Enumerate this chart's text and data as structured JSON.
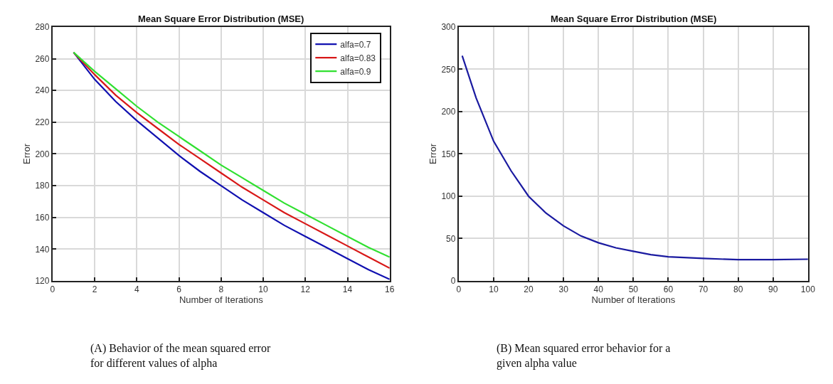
{
  "chart_data": [
    {
      "type": "line",
      "title": "Mean Square Error Distribution (MSE)",
      "xlabel": "Number of Iterations",
      "ylabel": "Error",
      "x": [
        1,
        2,
        3,
        4,
        5,
        6,
        7,
        8,
        9,
        10,
        11,
        12,
        13,
        14,
        15,
        16
      ],
      "series": [
        {
          "name": "alfa=0.7",
          "color": "#1010b0",
          "values": [
            264,
            247,
            233,
            221,
            210,
            199,
            189,
            180,
            171,
            163,
            155,
            148,
            141,
            134,
            127,
            121
          ]
        },
        {
          "name": "alfa=0.83",
          "color": "#d81818",
          "values": [
            264,
            250,
            237,
            226,
            216,
            206,
            197,
            188,
            179,
            171,
            163,
            156,
            149,
            142,
            135,
            128
          ]
        },
        {
          "name": "alfa=0.9",
          "color": "#30e030",
          "values": [
            264,
            252,
            241,
            230,
            220,
            211,
            202,
            193,
            185,
            177,
            169,
            162,
            155,
            148,
            141,
            135
          ]
        }
      ],
      "xlim": [
        0,
        16
      ],
      "xticks": [
        0,
        2,
        4,
        6,
        8,
        10,
        12,
        14,
        16
      ],
      "ylim": [
        120,
        280
      ],
      "yticks": [
        120,
        140,
        160,
        180,
        200,
        220,
        240,
        260,
        280
      ],
      "grid": true,
      "legend": "top right",
      "line_style": "solid",
      "marker": "none",
      "annotations": [
        "(A) Behavior of the mean squared error for different values of alpha"
      ]
    },
    {
      "type": "line",
      "title": "Mean Square Error Distribution (MSE)",
      "xlabel": "Number of Iterations",
      "ylabel": "Error",
      "x": [
        1,
        5,
        10,
        15,
        20,
        25,
        30,
        35,
        40,
        45,
        50,
        55,
        60,
        70,
        80,
        90,
        100
      ],
      "series": [
        {
          "color": "#1a1aa0",
          "values": [
            266,
            216,
            165,
            130,
            100,
            80,
            65,
            53,
            45,
            39,
            35,
            31,
            28.5,
            26.5,
            25,
            25,
            25.6
          ]
        }
      ],
      "xlim": [
        0,
        100
      ],
      "xticks": [
        0,
        10,
        20,
        30,
        40,
        50,
        60,
        70,
        80,
        90,
        100
      ],
      "ylim": [
        0,
        300
      ],
      "yticks": [
        0,
        50,
        100,
        150,
        200,
        250,
        300
      ],
      "grid": true,
      "legend": false,
      "line_style": "solid",
      "marker": "none",
      "annotations": [
        "(B) Mean squared error behavior for a given alpha value"
      ]
    }
  ]
}
